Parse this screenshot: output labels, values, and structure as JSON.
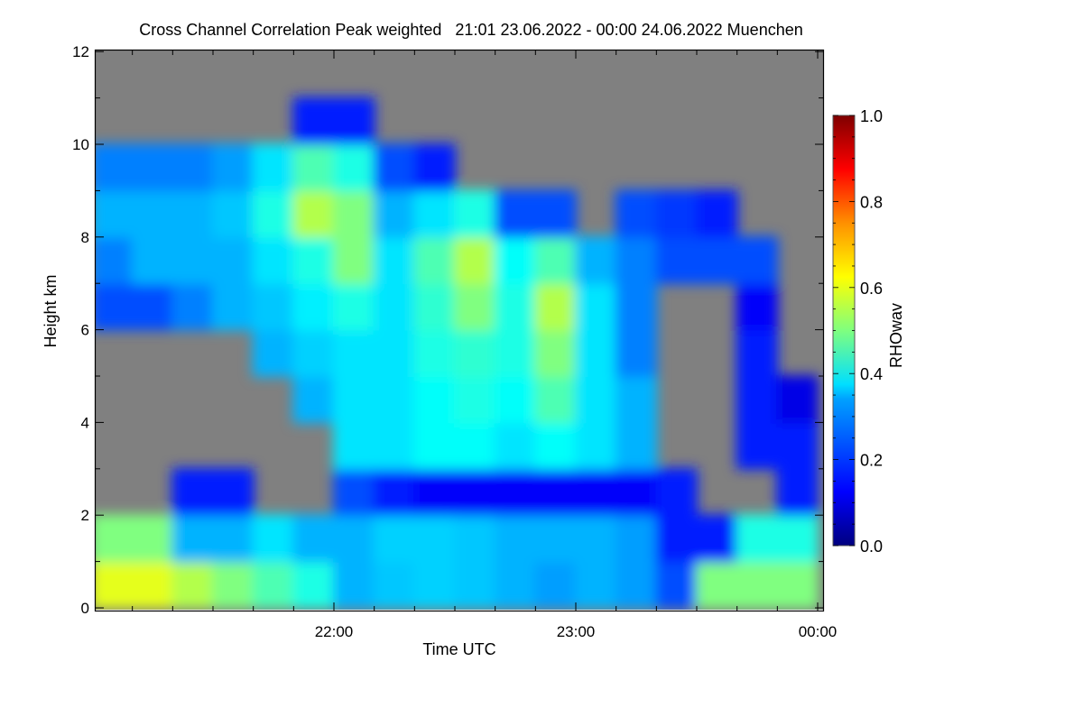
{
  "chart_data": {
    "type": "heatmap",
    "title": "Cross Channel Correlation Peak weighted   21:01 23.06.2022 - 00:00 24.06.2022 Muenchen",
    "xlabel": "Time UTC",
    "ylabel": "Height km",
    "colorbar_label": "RHOwav",
    "x_ticks": [
      {
        "label": "22:00",
        "min": 60
      },
      {
        "label": "23:00",
        "min": 120
      },
      {
        "label": "00:00",
        "min": 180
      }
    ],
    "x_range_minutes_after_2100": [
      1,
      180
    ],
    "y_ticks": [
      "0",
      "2",
      "4",
      "6",
      "8",
      "10",
      "12"
    ],
    "ylim": [
      0,
      12
    ],
    "colorbar_ticks": [
      "0.0",
      "0.2",
      "0.4",
      "0.6",
      "0.8",
      "1.0"
    ],
    "clim": [
      0,
      1
    ],
    "colormap": "jet",
    "nodata_color": "#808080",
    "time_bin_minutes": 10,
    "height_bin_km": 1,
    "time_bins_start": [
      "21:00",
      "21:10",
      "21:20",
      "21:30",
      "21:40",
      "21:50",
      "22:00",
      "22:10",
      "22:20",
      "22:30",
      "22:40",
      "22:50",
      "23:00",
      "23:10",
      "23:20",
      "23:30",
      "23:40",
      "23:50"
    ],
    "values_by_time_then_height": [
      [
        0.6,
        0.5,
        null,
        null,
        null,
        null,
        0.2,
        0.25,
        0.3,
        0.25,
        null,
        null
      ],
      [
        0.6,
        0.5,
        null,
        null,
        null,
        null,
        0.2,
        0.3,
        0.3,
        0.25,
        null,
        null
      ],
      [
        0.55,
        0.3,
        0.15,
        null,
        null,
        null,
        0.25,
        0.3,
        0.3,
        0.25,
        null,
        null
      ],
      [
        0.5,
        0.3,
        0.15,
        null,
        null,
        null,
        0.3,
        0.3,
        0.32,
        0.28,
        null,
        null
      ],
      [
        0.45,
        0.35,
        null,
        null,
        null,
        0.3,
        0.32,
        0.35,
        0.4,
        0.35,
        null,
        null
      ],
      [
        0.4,
        0.3,
        null,
        null,
        0.3,
        0.33,
        0.36,
        0.4,
        0.55,
        0.45,
        0.15,
        null
      ],
      [
        0.3,
        0.3,
        0.2,
        0.35,
        0.35,
        0.35,
        0.4,
        0.5,
        0.5,
        0.4,
        0.15,
        null
      ],
      [
        0.32,
        0.33,
        0.15,
        0.35,
        0.35,
        0.35,
        0.35,
        0.35,
        0.3,
        0.2,
        null,
        null
      ],
      [
        0.33,
        0.33,
        0.12,
        0.38,
        0.38,
        0.4,
        0.42,
        0.45,
        0.35,
        0.15,
        null,
        null
      ],
      [
        0.32,
        0.32,
        0.12,
        0.38,
        0.4,
        0.42,
        0.5,
        0.55,
        0.4,
        null,
        null,
        null
      ],
      [
        0.3,
        0.3,
        0.12,
        0.35,
        0.38,
        0.4,
        0.4,
        0.38,
        0.2,
        null,
        null,
        null
      ],
      [
        0.28,
        0.3,
        0.12,
        0.38,
        0.45,
        0.5,
        0.55,
        0.45,
        0.2,
        null,
        null,
        null
      ],
      [
        0.3,
        0.3,
        0.12,
        0.35,
        0.35,
        0.35,
        0.35,
        0.3,
        null,
        null,
        null,
        null
      ],
      [
        0.28,
        0.28,
        0.12,
        0.3,
        0.3,
        0.25,
        0.25,
        0.25,
        0.2,
        null,
        null,
        null
      ],
      [
        0.2,
        0.15,
        0.15,
        null,
        null,
        null,
        null,
        0.2,
        0.18,
        null,
        null,
        null
      ],
      [
        0.5,
        0.15,
        null,
        null,
        null,
        null,
        null,
        0.2,
        0.15,
        null,
        null,
        null
      ],
      [
        0.5,
        0.4,
        null,
        0.15,
        0.15,
        0.15,
        0.12,
        0.2,
        null,
        null,
        null,
        null
      ],
      [
        0.5,
        0.4,
        0.15,
        0.15,
        0.1,
        null,
        null,
        null,
        null,
        null,
        null,
        null
      ]
    ]
  }
}
